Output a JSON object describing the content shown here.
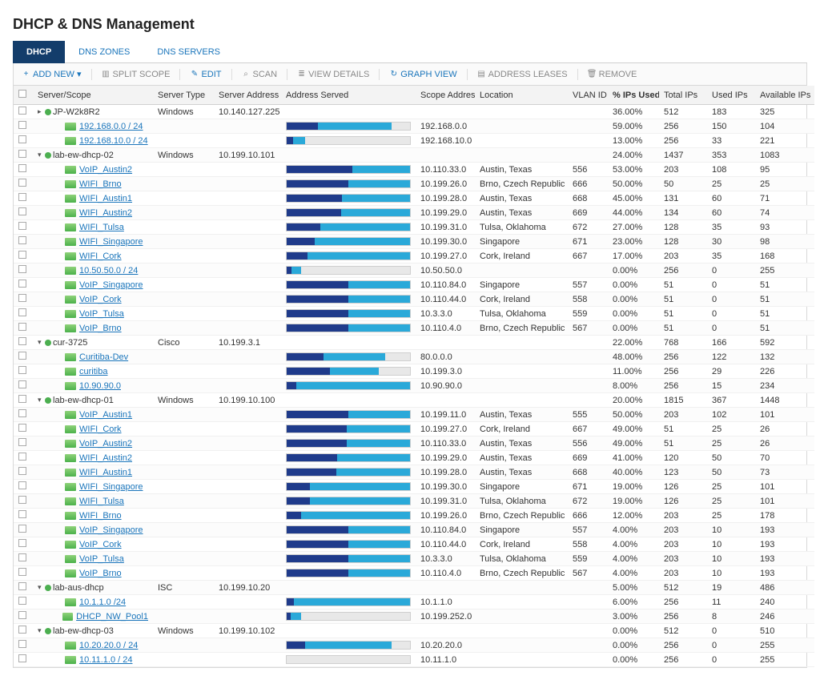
{
  "title": "DHCP & DNS Management",
  "tabs": [
    {
      "label": "DHCP",
      "active": true
    },
    {
      "label": "DNS ZONES",
      "active": false
    },
    {
      "label": "DNS SERVERS",
      "active": false
    }
  ],
  "toolbar": [
    {
      "id": "add",
      "label": "ADD NEW",
      "icon": "+",
      "enabled": true,
      "dropdown": true
    },
    {
      "id": "split",
      "label": "SPLIT SCOPE",
      "icon": "▥",
      "enabled": false
    },
    {
      "id": "edit",
      "label": "EDIT",
      "icon": "✎",
      "enabled": true
    },
    {
      "id": "scan",
      "label": "SCAN",
      "icon": "⌕",
      "enabled": false
    },
    {
      "id": "view",
      "label": "VIEW DETAILS",
      "icon": "≣",
      "enabled": false
    },
    {
      "id": "graph",
      "label": "GRAPH VIEW",
      "icon": "↻",
      "enabled": true
    },
    {
      "id": "leases",
      "label": "ADDRESS LEASES",
      "icon": "▤",
      "enabled": false
    },
    {
      "id": "remove",
      "label": "REMOVE",
      "icon": "🗑",
      "enabled": false
    }
  ],
  "columns": [
    {
      "key": "name",
      "label": "Server/Scope"
    },
    {
      "key": "type",
      "label": "Server Type"
    },
    {
      "key": "addr",
      "label": "Server Address"
    },
    {
      "key": "served",
      "label": "Address Served"
    },
    {
      "key": "scope",
      "label": "Scope Address"
    },
    {
      "key": "loc",
      "label": "Location"
    },
    {
      "key": "vlan",
      "label": "VLAN ID"
    },
    {
      "key": "pct",
      "label": "% IPs Used",
      "sorted": true,
      "dir": "▾"
    },
    {
      "key": "total",
      "label": "Total IPs"
    },
    {
      "key": "used",
      "label": "Used IPs"
    },
    {
      "key": "avail",
      "label": "Available IPs"
    }
  ],
  "bar_colors": {
    "track": "#e8e8e8",
    "dark": "#1f3b8b",
    "light": "#2aa9d9",
    "border": "#cfcfcf"
  },
  "rows": [
    {
      "level": 0,
      "kind": "server",
      "exp": "▸",
      "status": true,
      "name": "JP-W2k8R2",
      "type": "Windows",
      "addr": "10.140.127.225",
      "served": null,
      "scope": "",
      "loc": "",
      "vlan": "",
      "pct": "36.00%",
      "total": "512",
      "used": "183",
      "avail": "325",
      "bar_dark": 0,
      "bar_light": 0
    },
    {
      "level": 1,
      "kind": "scope",
      "name": "192.168.0.0 / 24",
      "served": true,
      "scope": "192.168.0.0",
      "loc": "",
      "vlan": "",
      "pct": "59.00%",
      "total": "256",
      "used": "150",
      "avail": "104",
      "bar_dark": 25,
      "bar_light": 60
    },
    {
      "level": 1,
      "kind": "scope",
      "name": "192.168.10.0 / 24",
      "served": true,
      "scope": "192.168.10.0",
      "loc": "",
      "vlan": "",
      "pct": "13.00%",
      "total": "256",
      "used": "33",
      "avail": "221",
      "bar_dark": 5,
      "bar_light": 10
    },
    {
      "level": 0,
      "kind": "server",
      "exp": "▾",
      "status": true,
      "name": "lab-ew-dhcp-02",
      "type": "Windows",
      "addr": "10.199.10.101",
      "served": null,
      "scope": "",
      "loc": "",
      "vlan": "",
      "pct": "24.00%",
      "total": "1437",
      "used": "353",
      "avail": "1083",
      "bar_dark": 0,
      "bar_light": 0
    },
    {
      "level": 1,
      "kind": "scope",
      "name": "VoIP_Austin2",
      "served": true,
      "scope": "10.110.33.0",
      "loc": "Austin, Texas",
      "vlan": "556",
      "pct": "53.00%",
      "total": "203",
      "used": "108",
      "avail": "95",
      "bar_dark": 53,
      "bar_light": 47
    },
    {
      "level": 1,
      "kind": "scope",
      "name": "WIFI_Brno",
      "served": true,
      "scope": "10.199.26.0",
      "loc": "Brno, Czech Republic",
      "vlan": "666",
      "pct": "50.00%",
      "total": "50",
      "used": "25",
      "avail": "25",
      "bar_dark": 50,
      "bar_light": 50
    },
    {
      "level": 1,
      "kind": "scope",
      "name": "WIFI_Austin1",
      "served": true,
      "scope": "10.199.28.0",
      "loc": "Austin, Texas",
      "vlan": "668",
      "pct": "45.00%",
      "total": "131",
      "used": "60",
      "avail": "71",
      "bar_dark": 45,
      "bar_light": 55
    },
    {
      "level": 1,
      "kind": "scope",
      "name": "WIFI_Austin2",
      "served": true,
      "scope": "10.199.29.0",
      "loc": "Austin, Texas",
      "vlan": "669",
      "pct": "44.00%",
      "total": "134",
      "used": "60",
      "avail": "74",
      "bar_dark": 44,
      "bar_light": 56
    },
    {
      "level": 1,
      "kind": "scope",
      "name": "WIFI_Tulsa",
      "served": true,
      "scope": "10.199.31.0",
      "loc": "Tulsa, Oklahoma",
      "vlan": "672",
      "pct": "27.00%",
      "total": "128",
      "used": "35",
      "avail": "93",
      "bar_dark": 27,
      "bar_light": 73
    },
    {
      "level": 1,
      "kind": "scope",
      "name": "WIFI_Singapore",
      "served": true,
      "scope": "10.199.30.0",
      "loc": "Singapore",
      "vlan": "671",
      "pct": "23.00%",
      "total": "128",
      "used": "30",
      "avail": "98",
      "bar_dark": 23,
      "bar_light": 77
    },
    {
      "level": 1,
      "kind": "scope",
      "name": "WIFI_Cork",
      "served": true,
      "scope": "10.199.27.0",
      "loc": "Cork, Ireland",
      "vlan": "667",
      "pct": "17.00%",
      "total": "203",
      "used": "35",
      "avail": "168",
      "bar_dark": 17,
      "bar_light": 83
    },
    {
      "level": 1,
      "kind": "scope",
      "name": "10.50.50.0 / 24",
      "served": true,
      "scope": "10.50.50.0",
      "loc": "",
      "vlan": "",
      "pct": "0.00%",
      "total": "256",
      "used": "0",
      "avail": "255",
      "bar_dark": 4,
      "bar_light": 8
    },
    {
      "level": 1,
      "kind": "scope",
      "name": "VoIP_Singapore",
      "served": true,
      "scope": "10.110.84.0",
      "loc": "Singapore",
      "vlan": "557",
      "pct": "0.00%",
      "total": "51",
      "used": "0",
      "avail": "51",
      "bar_dark": 50,
      "bar_light": 50
    },
    {
      "level": 1,
      "kind": "scope",
      "name": "VoIP_Cork",
      "served": true,
      "scope": "10.110.44.0",
      "loc": "Cork, Ireland",
      "vlan": "558",
      "pct": "0.00%",
      "total": "51",
      "used": "0",
      "avail": "51",
      "bar_dark": 50,
      "bar_light": 50
    },
    {
      "level": 1,
      "kind": "scope",
      "name": "VoIP_Tulsa",
      "served": true,
      "scope": "10.3.3.0",
      "loc": "Tulsa, Oklahoma",
      "vlan": "559",
      "pct": "0.00%",
      "total": "51",
      "used": "0",
      "avail": "51",
      "bar_dark": 50,
      "bar_light": 50
    },
    {
      "level": 1,
      "kind": "scope",
      "name": "VoIP_Brno",
      "served": true,
      "scope": "10.110.4.0",
      "loc": "Brno, Czech Republic",
      "vlan": "567",
      "pct": "0.00%",
      "total": "51",
      "used": "0",
      "avail": "51",
      "bar_dark": 50,
      "bar_light": 50
    },
    {
      "level": 0,
      "kind": "server",
      "exp": "▾",
      "status": true,
      "name": "cur-3725",
      "type": "Cisco",
      "addr": "10.199.3.1",
      "served": null,
      "scope": "",
      "loc": "",
      "vlan": "",
      "pct": "22.00%",
      "total": "768",
      "used": "166",
      "avail": "592",
      "bar_dark": 0,
      "bar_light": 0
    },
    {
      "level": 1,
      "kind": "scope",
      "name": "Curitiba-Dev",
      "served": true,
      "scope": "80.0.0.0",
      "loc": "",
      "vlan": "",
      "pct": "48.00%",
      "total": "256",
      "used": "122",
      "avail": "132",
      "bar_dark": 30,
      "bar_light": 50
    },
    {
      "level": 1,
      "kind": "scope",
      "name": "curitiba",
      "served": true,
      "scope": "10.199.3.0",
      "loc": "",
      "vlan": "",
      "pct": "11.00%",
      "total": "256",
      "used": "29",
      "avail": "226",
      "bar_dark": 35,
      "bar_light": 40
    },
    {
      "level": 1,
      "kind": "scope",
      "name": "10.90.90.0",
      "served": true,
      "scope": "10.90.90.0",
      "loc": "",
      "vlan": "",
      "pct": "8.00%",
      "total": "256",
      "used": "15",
      "avail": "234",
      "bar_dark": 8,
      "bar_light": 92
    },
    {
      "level": 0,
      "kind": "server",
      "exp": "▾",
      "status": true,
      "name": "lab-ew-dhcp-01",
      "type": "Windows",
      "addr": "10.199.10.100",
      "served": null,
      "scope": "",
      "loc": "",
      "vlan": "",
      "pct": "20.00%",
      "total": "1815",
      "used": "367",
      "avail": "1448",
      "bar_dark": 0,
      "bar_light": 0
    },
    {
      "level": 1,
      "kind": "scope",
      "name": "VoIP_Austin1",
      "served": true,
      "scope": "10.199.11.0",
      "loc": "Austin, Texas",
      "vlan": "555",
      "pct": "50.00%",
      "total": "203",
      "used": "102",
      "avail": "101",
      "bar_dark": 50,
      "bar_light": 50
    },
    {
      "level": 1,
      "kind": "scope",
      "name": "WIFI_Cork",
      "served": true,
      "scope": "10.199.27.0",
      "loc": "Cork, Ireland",
      "vlan": "667",
      "pct": "49.00%",
      "total": "51",
      "used": "25",
      "avail": "26",
      "bar_dark": 49,
      "bar_light": 51
    },
    {
      "level": 1,
      "kind": "scope",
      "name": "VoIP_Austin2",
      "served": true,
      "scope": "10.110.33.0",
      "loc": "Austin, Texas",
      "vlan": "556",
      "pct": "49.00%",
      "total": "51",
      "used": "25",
      "avail": "26",
      "bar_dark": 49,
      "bar_light": 51
    },
    {
      "level": 1,
      "kind": "scope",
      "name": "WIFI_Austin2",
      "served": true,
      "scope": "10.199.29.0",
      "loc": "Austin, Texas",
      "vlan": "669",
      "pct": "41.00%",
      "total": "120",
      "used": "50",
      "avail": "70",
      "bar_dark": 41,
      "bar_light": 59
    },
    {
      "level": 1,
      "kind": "scope",
      "name": "WIFI_Austin1",
      "served": true,
      "scope": "10.199.28.0",
      "loc": "Austin, Texas",
      "vlan": "668",
      "pct": "40.00%",
      "total": "123",
      "used": "50",
      "avail": "73",
      "bar_dark": 40,
      "bar_light": 60
    },
    {
      "level": 1,
      "kind": "scope",
      "name": "WIFI_Singapore",
      "served": true,
      "scope": "10.199.30.0",
      "loc": "Singapore",
      "vlan": "671",
      "pct": "19.00%",
      "total": "126",
      "used": "25",
      "avail": "101",
      "bar_dark": 19,
      "bar_light": 81
    },
    {
      "level": 1,
      "kind": "scope",
      "name": "WIFI_Tulsa",
      "served": true,
      "scope": "10.199.31.0",
      "loc": "Tulsa, Oklahoma",
      "vlan": "672",
      "pct": "19.00%",
      "total": "126",
      "used": "25",
      "avail": "101",
      "bar_dark": 19,
      "bar_light": 81
    },
    {
      "level": 1,
      "kind": "scope",
      "name": "WIFI_Brno",
      "served": true,
      "scope": "10.199.26.0",
      "loc": "Brno, Czech Republic",
      "vlan": "666",
      "pct": "12.00%",
      "total": "203",
      "used": "25",
      "avail": "178",
      "bar_dark": 12,
      "bar_light": 88
    },
    {
      "level": 1,
      "kind": "scope",
      "name": "VoIP_Singapore",
      "served": true,
      "scope": "10.110.84.0",
      "loc": "Singapore",
      "vlan": "557",
      "pct": "4.00%",
      "total": "203",
      "used": "10",
      "avail": "193",
      "bar_dark": 50,
      "bar_light": 50
    },
    {
      "level": 1,
      "kind": "scope",
      "name": "VoIP_Cork",
      "served": true,
      "scope": "10.110.44.0",
      "loc": "Cork, Ireland",
      "vlan": "558",
      "pct": "4.00%",
      "total": "203",
      "used": "10",
      "avail": "193",
      "bar_dark": 50,
      "bar_light": 50
    },
    {
      "level": 1,
      "kind": "scope",
      "name": "VoIP_Tulsa",
      "served": true,
      "scope": "10.3.3.0",
      "loc": "Tulsa, Oklahoma",
      "vlan": "559",
      "pct": "4.00%",
      "total": "203",
      "used": "10",
      "avail": "193",
      "bar_dark": 50,
      "bar_light": 50
    },
    {
      "level": 1,
      "kind": "scope",
      "name": "VoIP_Brno",
      "served": true,
      "scope": "10.110.4.0",
      "loc": "Brno, Czech Republic",
      "vlan": "567",
      "pct": "4.00%",
      "total": "203",
      "used": "10",
      "avail": "193",
      "bar_dark": 50,
      "bar_light": 50
    },
    {
      "level": 0,
      "kind": "server",
      "exp": "▾",
      "status": true,
      "name": "lab-aus-dhcp",
      "type": "ISC",
      "addr": "10.199.10.20",
      "served": null,
      "scope": "",
      "loc": "",
      "vlan": "",
      "pct": "5.00%",
      "total": "512",
      "used": "19",
      "avail": "486",
      "bar_dark": 0,
      "bar_light": 0
    },
    {
      "level": 1,
      "kind": "scope",
      "name": "10.1.1.0 /24",
      "served": true,
      "scope": "10.1.1.0",
      "loc": "",
      "vlan": "",
      "pct": "6.00%",
      "total": "256",
      "used": "11",
      "avail": "240",
      "bar_dark": 6,
      "bar_light": 94
    },
    {
      "level": 1,
      "kind": "scope",
      "name": "DHCP_NW_Pool1",
      "served": true,
      "scope": "10.199.252.0",
      "loc": "",
      "vlan": "",
      "pct": "3.00%",
      "total": "256",
      "used": "8",
      "avail": "246",
      "bar_dark": 3,
      "bar_light": 9
    },
    {
      "level": 0,
      "kind": "server",
      "exp": "▾",
      "status": true,
      "name": "lab-ew-dhcp-03",
      "type": "Windows",
      "addr": "10.199.10.102",
      "served": null,
      "scope": "",
      "loc": "",
      "vlan": "",
      "pct": "0.00%",
      "total": "512",
      "used": "0",
      "avail": "510",
      "bar_dark": 0,
      "bar_light": 0
    },
    {
      "level": 1,
      "kind": "scope",
      "name": "10.20.20.0 / 24",
      "served": true,
      "scope": "10.20.20.0",
      "loc": "",
      "vlan": "",
      "pct": "0.00%",
      "total": "256",
      "used": "0",
      "avail": "255",
      "bar_dark": 15,
      "bar_light": 70
    },
    {
      "level": 1,
      "kind": "scope",
      "name": "10.11.1.0 / 24",
      "served": true,
      "scope": "10.11.1.0",
      "loc": "",
      "vlan": "",
      "pct": "0.00%",
      "total": "256",
      "used": "0",
      "avail": "255",
      "bar_dark": 0,
      "bar_light": 0
    }
  ]
}
